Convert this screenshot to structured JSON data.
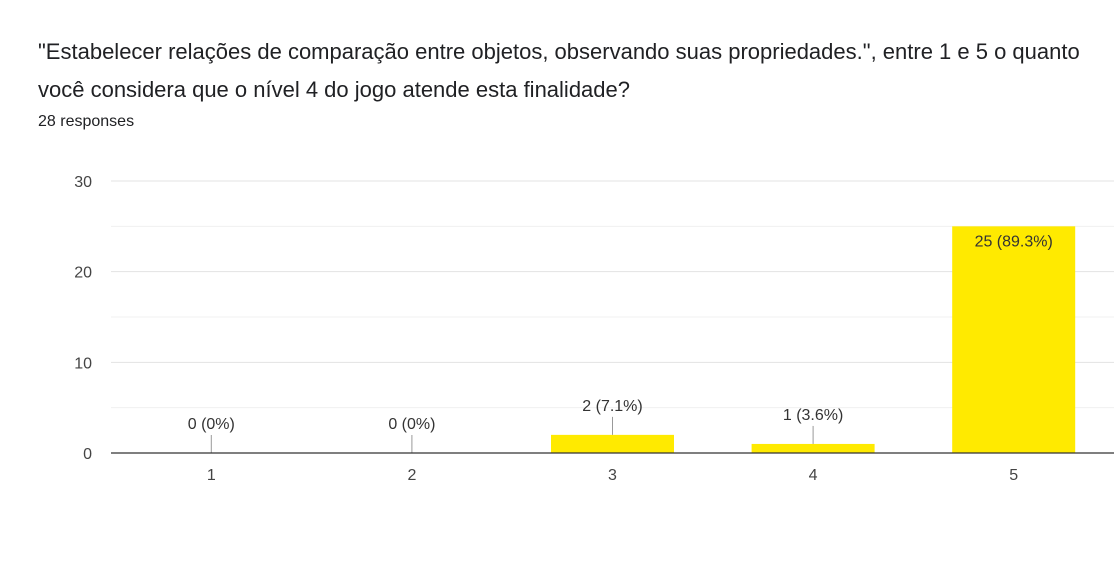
{
  "question": {
    "title": "\"Estabelecer relações de comparação entre objetos, observando suas propriedades.\", entre 1 e 5 o quanto você considera que o nível 4 do jogo atende esta finalidade?",
    "response_count": "28 responses"
  },
  "colors": {
    "bar": "#ffea00",
    "gridline": "#e6e6e6",
    "axis": "#333333",
    "text": "#202124"
  },
  "chart_data": {
    "type": "bar",
    "categories": [
      "1",
      "2",
      "3",
      "4",
      "5"
    ],
    "values": [
      0,
      0,
      2,
      1,
      25
    ],
    "data_labels": [
      "0 (0%)",
      "0 (0%)",
      "2 (7.1%)",
      "1 (3.6%)",
      "25 (89.3%)"
    ],
    "ylim": [
      0,
      30
    ],
    "yticks": [
      0,
      10,
      20,
      30
    ],
    "minor_gridlines": [
      5,
      15,
      25
    ],
    "grid": true,
    "legend": "none",
    "xlabel": "",
    "ylabel": ""
  }
}
